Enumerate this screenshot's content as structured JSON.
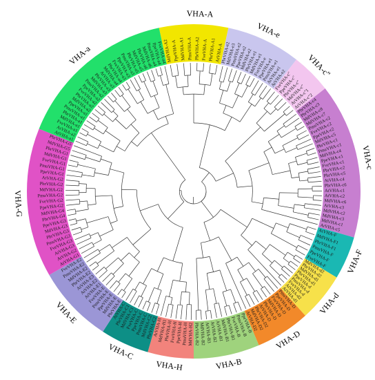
{
  "figure": {
    "type": "circular-phylogenetic-tree",
    "background": "#ffffff",
    "branch_color": "#333333"
  },
  "groups": [
    {
      "id": "A",
      "label": "VHA-A",
      "color": "#f2e600",
      "leaves": [
        "MdVHA-A2",
        "PpeVHA-A",
        "MdVHA-A1",
        "PmuVHA-A",
        "PbrVHA-A2",
        "FveVHA-A",
        "PbrVHA-A1",
        "AtVHA-A"
      ]
    },
    {
      "id": "e",
      "label": "VHA-e",
      "color": "#c9c6ee",
      "leaves": [
        "PbrVHA-e2",
        "MdVHA-e3",
        "PmuVHA-e2",
        "PpeVHA-e2",
        "MdVHA-e2",
        "PbrVHA-e1",
        "MdVHA-e1",
        "FveVHA-e",
        "PpeVHA-e1",
        "PmuVHA-e1",
        "AtVHA-e1",
        "AtVHA-e2"
      ]
    },
    {
      "id": "c2",
      "label": "VHA-c''",
      "color": "#f3c6ef",
      "leaves": [
        "FveVHA-c''",
        "PpeVHA-c''",
        "PbrVHA-c''",
        "MdVHA-c''",
        "AtVHA-c''1",
        "AtVHA-c''2"
      ]
    },
    {
      "id": "c",
      "label": "VHA-c",
      "color": "#c77fd0",
      "leaves": [
        "PbrVHA-c4",
        "PbrVHA-c3",
        "MdVHA-c8",
        "MdVHA-c7",
        "PmuVHA-c2",
        "FveVHA-c2",
        "PpeVHA-c2",
        "MdVHA-c5",
        "PbrVHA-c1",
        "PmuVHA-c1",
        "MdVHA-c4",
        "PpeVHA-c1",
        "FveVHA-c1",
        "PbrVHA-c2",
        "PbrVHA-c5",
        "AtVHA-c4",
        "PbrVHA-c6",
        "AtVHA-c1",
        "AtVHA-c2",
        "MdVHA-c6",
        "AtVHA-c3",
        "MdVHA-c2",
        "MdVHA-c3",
        "MdVHA-c1",
        "AtVHA-c5"
      ]
    },
    {
      "id": "F",
      "label": "VHA-F",
      "color": "#1ab8b3",
      "leaves": [
        "AtVHA-F",
        "MdVHA-F1",
        "PbrVHA-F1",
        "PmuVHA-F",
        "PpeVHA-F",
        "FveVHA-F"
      ]
    },
    {
      "id": "d",
      "label": "VHA-d",
      "color": "#f7e14a",
      "leaves": [
        "MdVHA-d2",
        "PbrVHA-d2",
        "MdVHA-d1",
        "PbrVHA-d1",
        "PpeVHA-d",
        "PmuVHA-d",
        "FveVHA-d",
        "AtVHA-d2",
        "AtVHA-d1"
      ]
    },
    {
      "id": "D",
      "label": "VHA-D",
      "color": "#f2892a",
      "leaves": [
        "PmuVHA-D",
        "PpeVHA-D",
        "FveVHA-D",
        "MdVHA-D",
        "PbrVHA-D",
        "AtVHA-D",
        "PbrVHA-D2",
        "MdVHA-D2",
        "AtVHA-D2"
      ]
    },
    {
      "id": "B",
      "label": "VHA-B",
      "color": "#9fd37d",
      "leaves": [
        "PpeVHA-B",
        "PmuVHA-B",
        "FveVHA-B",
        "PbrVHA-B1",
        "MdVHA-B1",
        "AtVHA-B1",
        "AtVHA-B2",
        "AtVHA-B3",
        "MdVHA-B2",
        "PbrVHA-B2"
      ]
    },
    {
      "id": "H",
      "label": "VHA-H",
      "color": "#f2837c",
      "leaves": [
        "MdVHA-H2",
        "PmuVHA-H",
        "PpeVHA-H",
        "FveVHA-H",
        "PbrVHA-H",
        "MdVHA-H1",
        "AtVHA-H"
      ]
    },
    {
      "id": "C",
      "label": "VHA-C",
      "color": "#0d8f86",
      "leaves": [
        "PbrVHA-C2",
        "MdVHA-C2",
        "PmuVHA-C",
        "PpeVHA-C",
        "FveVHA-C",
        "MdVHA-C1",
        "PbrVHA-C1",
        "AtVHA-C"
      ]
    },
    {
      "id": "E",
      "label": "VHA-E",
      "color": "#9b96d6",
      "leaves": [
        "PbrVHA-E",
        "MdVHA-E",
        "PpeVHA-E",
        "PmuVHA-E",
        "FveVHA-E",
        "AtVHA-E1",
        "AtVHA-E2",
        "AtVHA-E3",
        "PbrVHA-E2",
        "MdVHA-E2",
        "PmuVHA-E2",
        "FveVHA-E2"
      ]
    },
    {
      "id": "G",
      "label": "VHA-G",
      "color": "#e052c6",
      "leaves": [
        "AtVHA-G1",
        "AtVHA-G2",
        "AtVHA-G3",
        "FveVHA-G3",
        "PmuVHA-G3",
        "PbrVHA-G3",
        "MdVHA-G3",
        "PpeVHA-G3",
        "PbrVHA-G4",
        "MdVHA-G4",
        "PpeVHA-G2",
        "FveVHA-G2",
        "PmuVHA-G2",
        "MdVHA-G2",
        "PbrVHA-G2",
        "AtVHA-G2",
        "PpeVHA-G1",
        "PmuVHA-G1",
        "FveVHA-G1",
        "MdVHA-G1",
        "PbrVHA-G1",
        "MdVHA-G5",
        "PbrVHA-G5"
      ]
    },
    {
      "id": "a",
      "label": "VHA-a",
      "color": "#22e06b",
      "leaves": [
        "AtVHA-a1",
        "AtVHA-a2",
        "FveVHA-a1",
        "MdVHA-a1",
        "PbrVHA-a1",
        "PmuVHA-a1",
        "PpeVHA-a1",
        "MdVHA-a2",
        "PbrVHA-a2",
        "FveVHA-a2",
        "PpeVHA-a2",
        "PmuVHA-a2",
        "MdVHA-a3",
        "PbrVHA-a3",
        "AtVHA-a3",
        "MdVHA-a4",
        "PbrVHA-a4",
        "FveVHA-a3",
        "PpeVHA-a3",
        "PmuVHA-a3",
        "PbrVHA-a5",
        "MdVHA-a5",
        "PbrVHA-a6",
        "MdVHA-a6",
        "PmuVHA-a4",
        "PpeVHA-a4",
        "FveVHA-a4"
      ]
    }
  ]
}
